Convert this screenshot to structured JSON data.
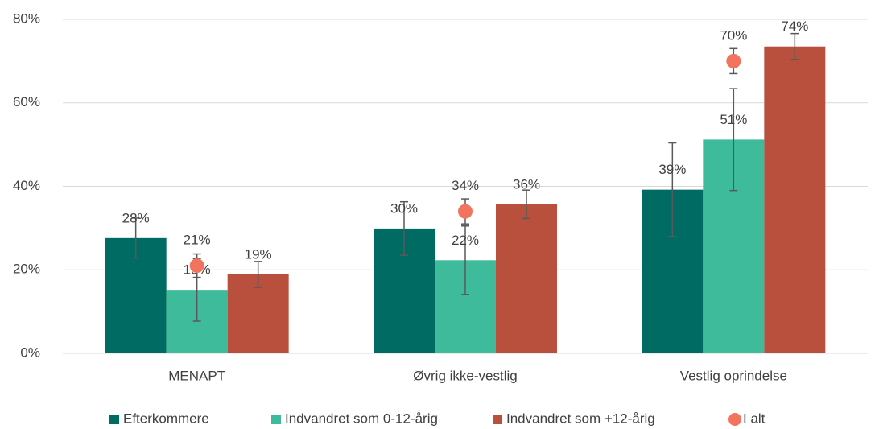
{
  "chart_data": {
    "type": "bar",
    "categories": [
      "MENAPT",
      "Øvrig ikke-vestlig",
      "Vestlig oprindelse"
    ],
    "series": [
      {
        "name": "Efterkommere",
        "color": "#006b62",
        "values": [
          27.6,
          29.9,
          39.2
        ],
        "errors": [
          4.8,
          6.4,
          11.2
        ],
        "value_labels": [
          "28%",
          "30%",
          "39%"
        ]
      },
      {
        "name": "Indvandret som 0-12-årig",
        "color": "#3dbb9a",
        "values": [
          15.2,
          22.3,
          51.2
        ],
        "errors": [
          7.5,
          8.2,
          12.2
        ],
        "value_labels": [
          "15%",
          "22%",
          "51%"
        ]
      },
      {
        "name": "Indvandret som +12-årig",
        "color": "#b9503e",
        "values": [
          18.9,
          35.7,
          73.5
        ],
        "errors": [
          3.1,
          3.4,
          3.1
        ],
        "value_labels": [
          "19%",
          "36%",
          "74%"
        ]
      },
      {
        "name": "I alt",
        "type": "scatter",
        "color": "#f2735e",
        "values": [
          21,
          34,
          70
        ],
        "errors": [
          2.8,
          3,
          3
        ],
        "value_labels": [
          "21%",
          "34%",
          "70%"
        ]
      }
    ],
    "ylim": [
      0,
      80
    ],
    "yticks": [
      {
        "value": 0,
        "label": "0%"
      },
      {
        "value": 20,
        "label": "20%"
      },
      {
        "value": 40,
        "label": "40%"
      },
      {
        "value": 60,
        "label": "60%"
      },
      {
        "value": 80,
        "label": "80%"
      }
    ],
    "grid": true,
    "legend": "bottom"
  }
}
